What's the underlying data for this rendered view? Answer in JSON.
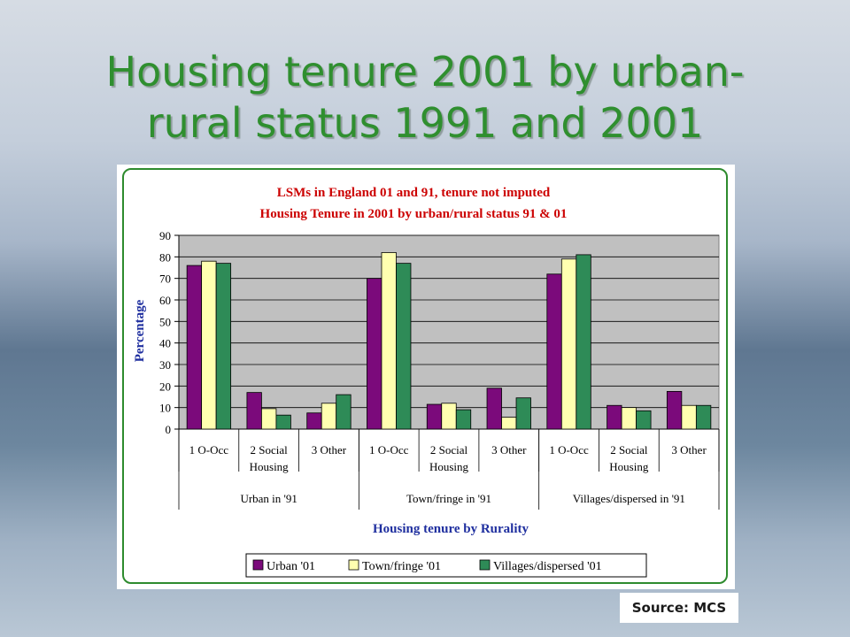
{
  "slide": {
    "title_line1": "Housing tenure 2001 by urban-",
    "title_line2": "rural status 1991 and 2001",
    "source": "Source: MCS"
  },
  "chart_data": {
    "type": "bar",
    "title_line1": "LSMs in England 01 and 91, tenure not imputed",
    "title_line2": "Housing Tenure in 2001 by urban/rural status 91 & 01",
    "ylabel": "Percentage",
    "xlabel": "Housing tenure by Rurality",
    "ylim": [
      0,
      90
    ],
    "yticks": [
      0,
      10,
      20,
      30,
      40,
      50,
      60,
      70,
      80,
      90
    ],
    "grid": true,
    "legend_position": "bottom",
    "categories": [
      {
        "line1": "1  O-Occ",
        "line2": ""
      },
      {
        "line1": "2  Social",
        "line2": "Housing"
      },
      {
        "line1": "3  Other",
        "line2": ""
      },
      {
        "line1": "1  O-Occ",
        "line2": ""
      },
      {
        "line1": "2  Social",
        "line2": "Housing"
      },
      {
        "line1": "3  Other",
        "line2": ""
      },
      {
        "line1": "1  O-Occ",
        "line2": ""
      },
      {
        "line1": "2  Social",
        "line2": "Housing"
      },
      {
        "line1": "3  Other",
        "line2": ""
      }
    ],
    "groups": [
      "Urban in '91",
      "Town/fringe in '91",
      "Villages/dispersed in '91"
    ],
    "series": [
      {
        "name": "Urban '01",
        "color": "#7b0a7b",
        "values": [
          76,
          17,
          7.5,
          70,
          11.5,
          19,
          72,
          11,
          17.5
        ]
      },
      {
        "name": "Town/fringe '01",
        "color": "#ffffb0",
        "values": [
          78,
          9.5,
          12,
          82,
          12,
          5.5,
          79,
          10,
          11
        ]
      },
      {
        "name": "Villages/dispersed '01",
        "color": "#2e8b57",
        "values": [
          77,
          6.5,
          16,
          77,
          9,
          14.5,
          81,
          8.5,
          11
        ]
      }
    ]
  }
}
